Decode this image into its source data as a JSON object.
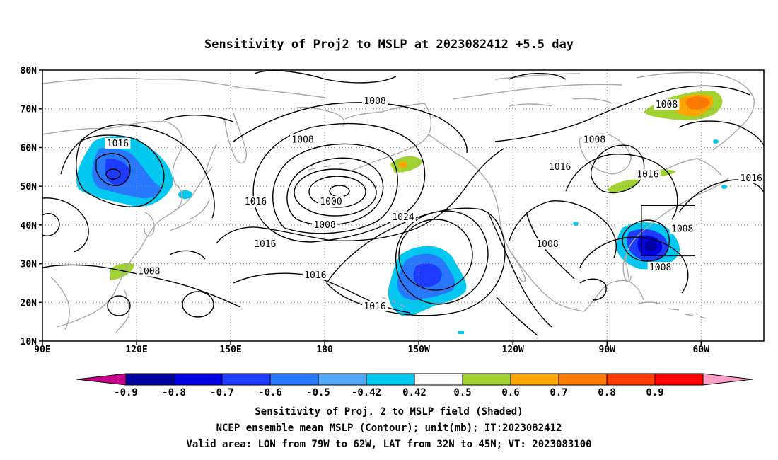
{
  "map": {
    "title": "Sensitivity of Proj2 to MSLP at 2023082412 +5.5 day",
    "lat_labels": [
      "80N",
      "70N",
      "60N",
      "50N",
      "40N",
      "30N",
      "20N",
      "10N"
    ],
    "lat_values": [
      80,
      70,
      60,
      50,
      40,
      30,
      20,
      10
    ],
    "lon_labels": [
      "90E",
      "120E",
      "150E",
      "180",
      "150W",
      "120W",
      "90W",
      "60W"
    ],
    "lon_values": [
      90,
      120,
      150,
      180,
      210,
      240,
      270,
      300
    ],
    "extent": {
      "lon_min": 90,
      "lon_max": 320,
      "lat_min": 10,
      "lat_max": 80
    },
    "contour_labels": [
      {
        "text": "1008",
        "lon": 196,
        "lat": 72
      },
      {
        "text": "1008",
        "lon": 289,
        "lat": 71
      },
      {
        "text": "1016",
        "lon": 114,
        "lat": 61
      },
      {
        "text": "1008",
        "lon": 173,
        "lat": 62
      },
      {
        "text": "1008",
        "lon": 266,
        "lat": 62
      },
      {
        "text": "1016",
        "lon": 255,
        "lat": 55
      },
      {
        "text": "1016",
        "lon": 283,
        "lat": 53
      },
      {
        "text": "1016",
        "lon": 316,
        "lat": 52
      },
      {
        "text": "1016",
        "lon": 158,
        "lat": 46
      },
      {
        "text": "1000",
        "lon": 182,
        "lat": 46
      },
      {
        "text": "1008",
        "lon": 180,
        "lat": 40
      },
      {
        "text": "1024",
        "lon": 205,
        "lat": 42
      },
      {
        "text": "1016",
        "lon": 161,
        "lat": 35
      },
      {
        "text": "1008",
        "lon": 251,
        "lat": 35
      },
      {
        "text": "1008",
        "lon": 294,
        "lat": 39
      },
      {
        "text": "1008",
        "lon": 287,
        "lat": 29
      },
      {
        "text": "1008",
        "lon": 124,
        "lat": 28
      },
      {
        "text": "1016",
        "lon": 177,
        "lat": 27
      },
      {
        "text": "1016",
        "lon": 196,
        "lat": 19
      }
    ],
    "valid_box": {
      "lon_min": 281,
      "lon_max": 298,
      "lat_min": 32,
      "lat_max": 45
    }
  },
  "colorbar": {
    "labels": [
      "-0.9",
      "-0.8",
      "-0.7",
      "-0.6",
      "-0.5",
      "-0.42",
      "0.42",
      "0.5",
      "0.6",
      "0.7",
      "0.8",
      "0.9"
    ],
    "colors": [
      "#0000a0",
      "#0000e0",
      "#1e3cff",
      "#2878ff",
      "#50a5f5",
      "#00c8f0",
      "#ffffff",
      "#a0d232",
      "#ffa500",
      "#ff7800",
      "#ff3c00",
      "#ff0000"
    ],
    "end_low_color": "#c8008c",
    "end_high_color": "#ffa0c8"
  },
  "captions": {
    "line1": "Sensitivity of Proj. 2 to MSLP field (Shaded)",
    "line2": "NCEP ensemble mean MSLP (Contour); unit(mb); IT:2023082412",
    "line3": "Valid area: LON from 79W to 62W, LAT from 32N to 45N; VT: 2023083100"
  }
}
